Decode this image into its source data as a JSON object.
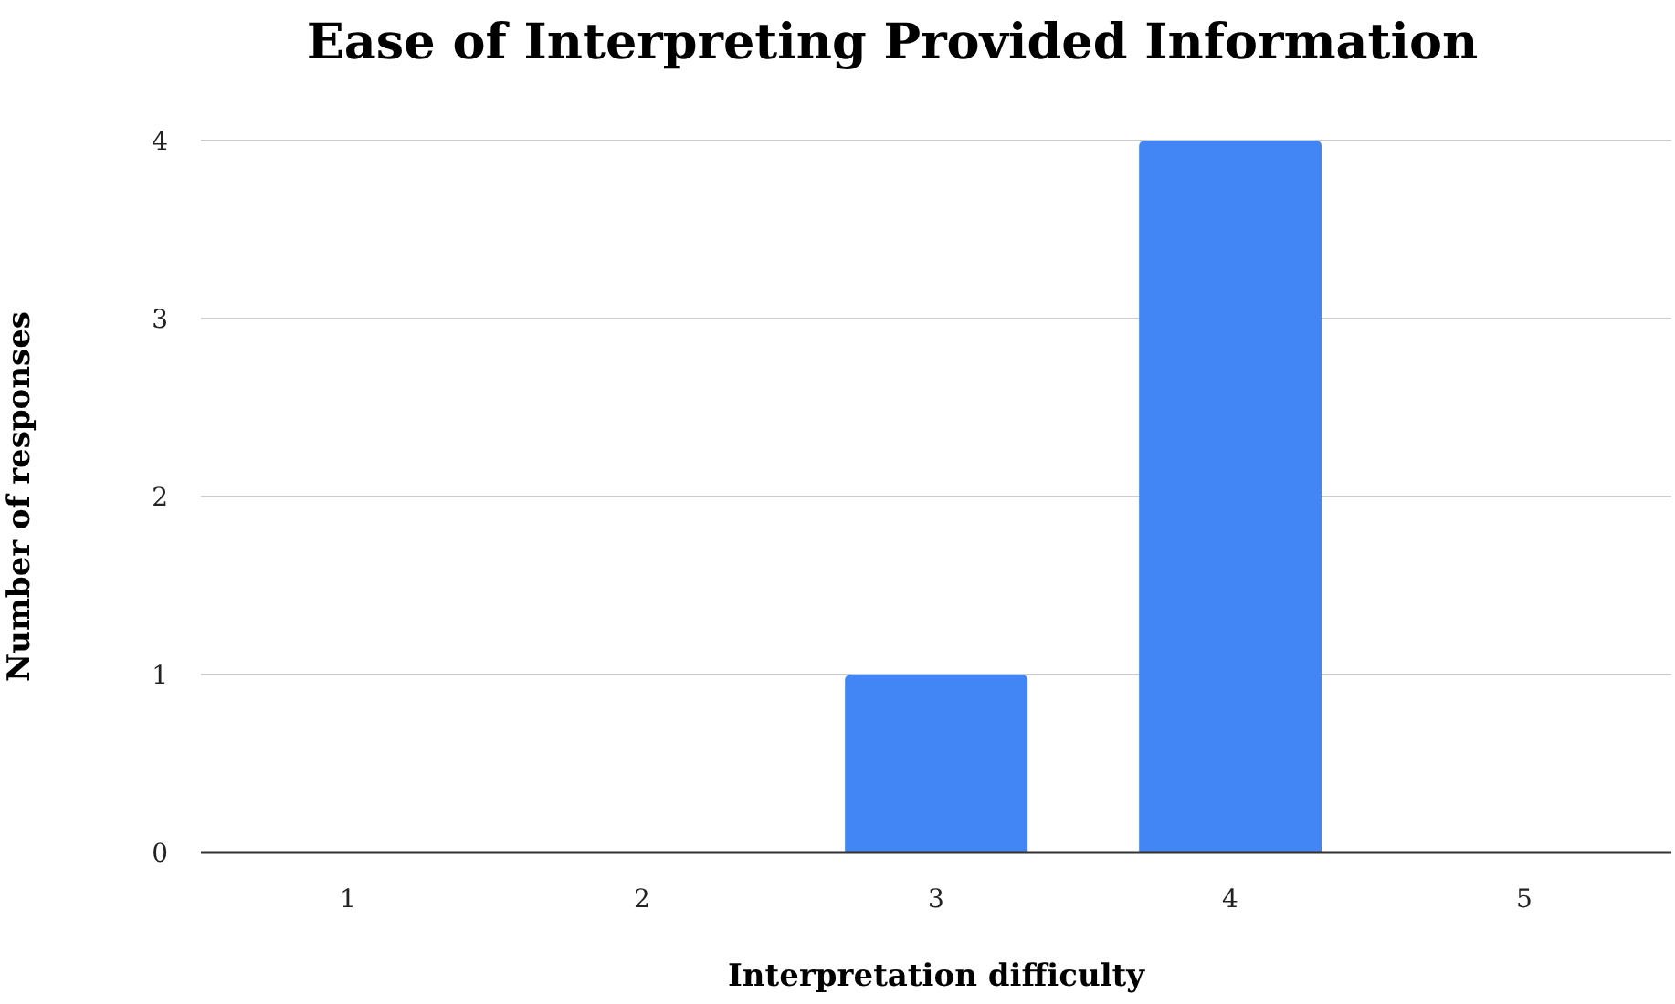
{
  "chart_data": {
    "type": "bar",
    "title": "Ease of Interpreting Provided Information",
    "xlabel": "Interpretation difficulty",
    "ylabel": "Number of responses",
    "categories": [
      "1",
      "2",
      "3",
      "4",
      "5"
    ],
    "values": [
      0,
      0,
      1,
      4,
      0
    ],
    "color": "#4285f4",
    "ylim": [
      0,
      4
    ],
    "yticks": [
      0,
      1,
      2,
      3,
      4
    ],
    "grid": "y",
    "legend": false
  }
}
